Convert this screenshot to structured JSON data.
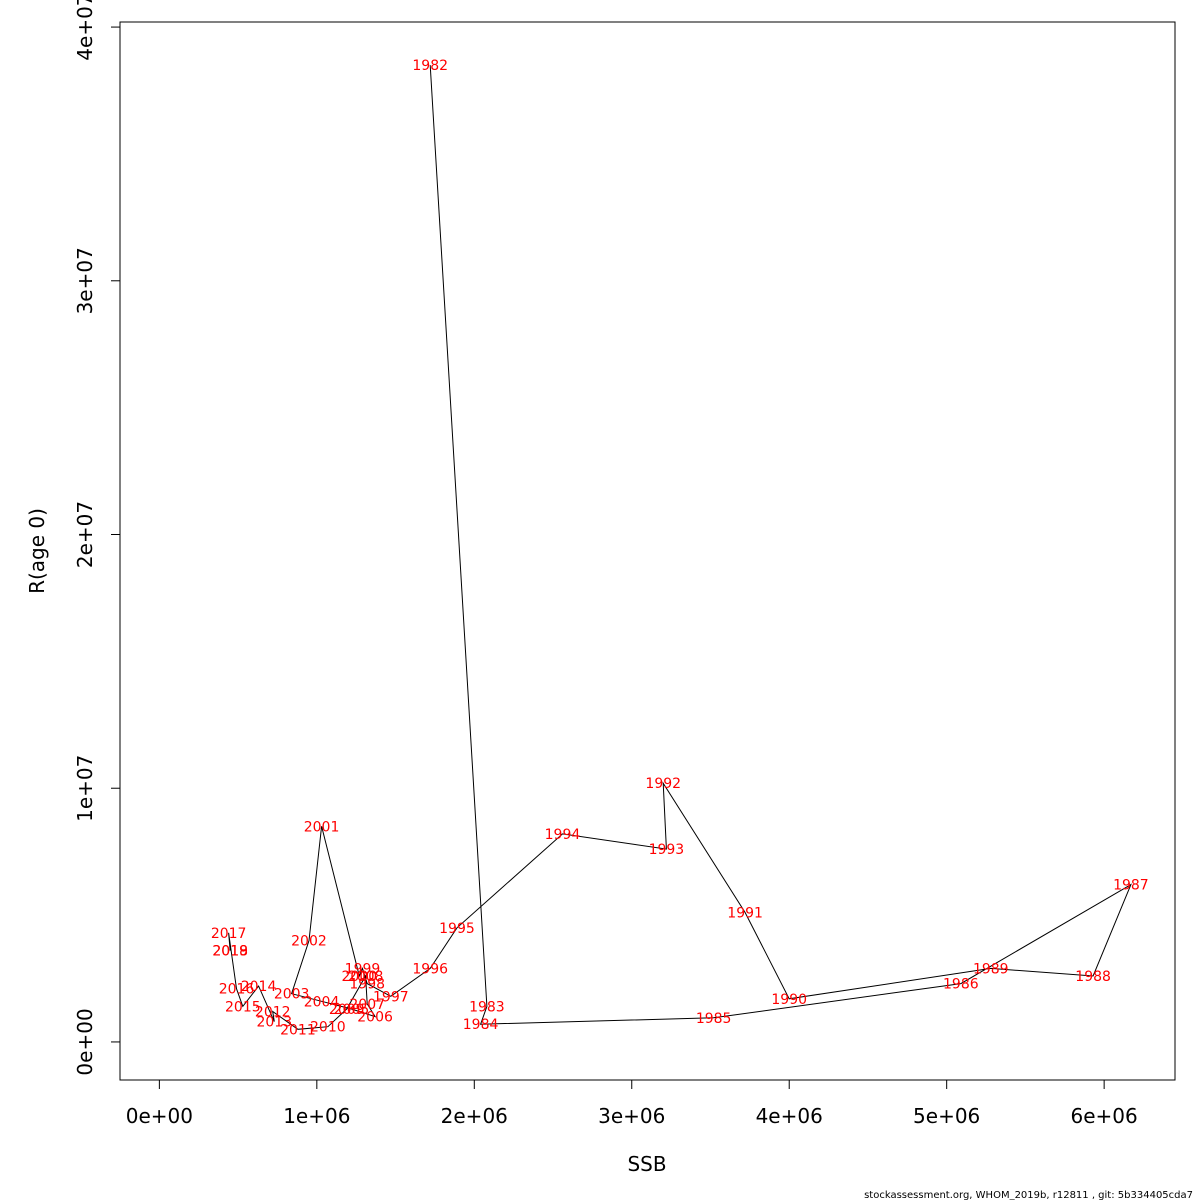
{
  "chart_data": {
    "type": "line",
    "title": "",
    "xlabel": "SSB",
    "ylabel": "R(age 0)",
    "xlim": [
      -250000,
      6450000
    ],
    "ylim": [
      -1500000,
      40200000
    ],
    "grid": false,
    "x_ticks": [
      {
        "value": 0,
        "label": "0e+00"
      },
      {
        "value": 1000000,
        "label": "1e+06"
      },
      {
        "value": 2000000,
        "label": "2e+06"
      },
      {
        "value": 3000000,
        "label": "3e+06"
      },
      {
        "value": 4000000,
        "label": "4e+06"
      },
      {
        "value": 5000000,
        "label": "5e+06"
      },
      {
        "value": 6000000,
        "label": "6e+06"
      }
    ],
    "y_ticks": [
      {
        "value": 0,
        "label": "0e+00"
      },
      {
        "value": 10000000,
        "label": "1e+07"
      },
      {
        "value": 20000000,
        "label": "2e+07"
      },
      {
        "value": 30000000,
        "label": "3e+07"
      },
      {
        "value": 40000000,
        "label": "4e+07"
      }
    ],
    "line_color": "#000000",
    "label_color": "#ff0000",
    "points": [
      {
        "year": "1982",
        "ssb": 1720000,
        "r": 38500000
      },
      {
        "year": "1983",
        "ssb": 2080000,
        "r": 1400000
      },
      {
        "year": "1984",
        "ssb": 2040000,
        "r": 700000
      },
      {
        "year": "1985",
        "ssb": 3520000,
        "r": 950000
      },
      {
        "year": "1986",
        "ssb": 5090000,
        "r": 2300000
      },
      {
        "year": "1987",
        "ssb": 6170000,
        "r": 6200000
      },
      {
        "year": "1988",
        "ssb": 5930000,
        "r": 2600000
      },
      {
        "year": "1989",
        "ssb": 5280000,
        "r": 2900000
      },
      {
        "year": "1990",
        "ssb": 4000000,
        "r": 1700000
      },
      {
        "year": "1991",
        "ssb": 3720000,
        "r": 5100000
      },
      {
        "year": "1992",
        "ssb": 3200000,
        "r": 10200000
      },
      {
        "year": "1993",
        "ssb": 3220000,
        "r": 7600000
      },
      {
        "year": "1994",
        "ssb": 2560000,
        "r": 8200000
      },
      {
        "year": "1995",
        "ssb": 1890000,
        "r": 4500000
      },
      {
        "year": "1996",
        "ssb": 1720000,
        "r": 2900000
      },
      {
        "year": "1997",
        "ssb": 1470000,
        "r": 1800000
      },
      {
        "year": "1998",
        "ssb": 1320000,
        "r": 2300000
      },
      {
        "year": "1999",
        "ssb": 1290000,
        "r": 2900000
      },
      {
        "year": "2000",
        "ssb": 1270000,
        "r": 2600000
      },
      {
        "year": "2001",
        "ssb": 1030000,
        "r": 8500000
      },
      {
        "year": "2002",
        "ssb": 950000,
        "r": 4000000
      },
      {
        "year": "2003",
        "ssb": 840000,
        "r": 1900000
      },
      {
        "year": "2004",
        "ssb": 1030000,
        "r": 1600000
      },
      {
        "year": "2005",
        "ssb": 1220000,
        "r": 1300000
      },
      {
        "year": "2006",
        "ssb": 1370000,
        "r": 1000000
      },
      {
        "year": "2007",
        "ssb": 1320000,
        "r": 1500000
      },
      {
        "year": "2008",
        "ssb": 1310000,
        "r": 2600000
      },
      {
        "year": "2009",
        "ssb": 1190000,
        "r": 1300000
      },
      {
        "year": "2010",
        "ssb": 1070000,
        "r": 600000
      },
      {
        "year": "2011",
        "ssb": 880000,
        "r": 500000
      },
      {
        "year": "2012",
        "ssb": 720000,
        "r": 1200000
      },
      {
        "year": "2013",
        "ssb": 730000,
        "r": 800000
      },
      {
        "year": "2014",
        "ssb": 630000,
        "r": 2200000
      },
      {
        "year": "2015",
        "ssb": 530000,
        "r": 1400000
      },
      {
        "year": "2016",
        "ssb": 490000,
        "r": 2100000
      },
      {
        "year": "2017",
        "ssb": 440000,
        "r": 4300000
      },
      {
        "year": "2018",
        "ssb": 450000,
        "r": 3600000
      },
      {
        "year": "2019",
        "ssb": 450000,
        "r": 3600000
      }
    ],
    "footer": "stockassessment.org, WHOM_2019b, r12811 , git: 5b334405cda7"
  }
}
